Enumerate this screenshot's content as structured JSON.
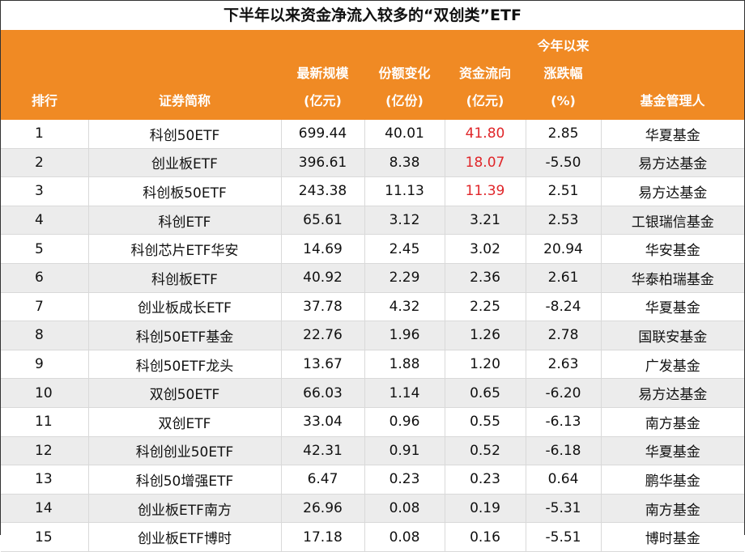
{
  "title": "下半年以来资金净流入较多的“双创类”ETF",
  "columns": [
    {
      "lines": [
        "排行"
      ]
    },
    {
      "lines": [
        "证券简称"
      ]
    },
    {
      "lines": [
        "最新规模",
        "(亿元)"
      ]
    },
    {
      "lines": [
        "份额变化",
        "(亿份)"
      ]
    },
    {
      "lines": [
        "资金流向",
        "(亿元)"
      ]
    },
    {
      "lines": [
        "今年以来",
        "涨跌幅",
        "(%)"
      ]
    },
    {
      "lines": [
        "基金管理人"
      ]
    }
  ],
  "highlight_color": "#e0262a",
  "header_color": "#f08a24",
  "rows": [
    {
      "rank": "1",
      "name": "科创50ETF",
      "scale": "699.44",
      "share_change": "40.01",
      "flow": "41.80",
      "ytd": "2.85",
      "manager": "华夏基金",
      "flow_highlight": true
    },
    {
      "rank": "2",
      "name": "创业板ETF",
      "scale": "396.61",
      "share_change": "8.38",
      "flow": "18.07",
      "ytd": "-5.50",
      "manager": "易方达基金",
      "flow_highlight": true
    },
    {
      "rank": "3",
      "name": "科创板50ETF",
      "scale": "243.38",
      "share_change": "11.13",
      "flow": "11.39",
      "ytd": "2.51",
      "manager": "易方达基金",
      "flow_highlight": true
    },
    {
      "rank": "4",
      "name": "科创ETF",
      "scale": "65.61",
      "share_change": "3.12",
      "flow": "3.21",
      "ytd": "2.53",
      "manager": "工银瑞信基金",
      "flow_highlight": false
    },
    {
      "rank": "5",
      "name": "科创芯片ETF华安",
      "scale": "14.69",
      "share_change": "2.45",
      "flow": "3.02",
      "ytd": "20.94",
      "manager": "华安基金",
      "flow_highlight": false
    },
    {
      "rank": "6",
      "name": "科创板ETF",
      "scale": "40.92",
      "share_change": "2.29",
      "flow": "2.36",
      "ytd": "2.61",
      "manager": "华泰柏瑞基金",
      "flow_highlight": false
    },
    {
      "rank": "7",
      "name": "创业板成长ETF",
      "scale": "37.78",
      "share_change": "4.32",
      "flow": "2.25",
      "ytd": "-8.24",
      "manager": "华夏基金",
      "flow_highlight": false
    },
    {
      "rank": "8",
      "name": "科创50ETF基金",
      "scale": "22.76",
      "share_change": "1.96",
      "flow": "1.26",
      "ytd": "2.78",
      "manager": "国联安基金",
      "flow_highlight": false
    },
    {
      "rank": "9",
      "name": "科创50ETF龙头",
      "scale": "13.67",
      "share_change": "1.88",
      "flow": "1.20",
      "ytd": "2.63",
      "manager": "广发基金",
      "flow_highlight": false
    },
    {
      "rank": "10",
      "name": "双创50ETF",
      "scale": "66.03",
      "share_change": "1.14",
      "flow": "0.65",
      "ytd": "-6.20",
      "manager": "易方达基金",
      "flow_highlight": false
    },
    {
      "rank": "11",
      "name": "双创ETF",
      "scale": "33.04",
      "share_change": "0.96",
      "flow": "0.55",
      "ytd": "-6.13",
      "manager": "南方基金",
      "flow_highlight": false
    },
    {
      "rank": "12",
      "name": "科创创业50ETF",
      "scale": "42.31",
      "share_change": "0.91",
      "flow": "0.52",
      "ytd": "-6.18",
      "manager": "华夏基金",
      "flow_highlight": false
    },
    {
      "rank": "13",
      "name": "科创50增强ETF",
      "scale": "6.47",
      "share_change": "0.23",
      "flow": "0.23",
      "ytd": "0.64",
      "manager": "鹏华基金",
      "flow_highlight": false
    },
    {
      "rank": "14",
      "name": "创业板ETF南方",
      "scale": "26.96",
      "share_change": "0.08",
      "flow": "0.19",
      "ytd": "-5.31",
      "manager": "南方基金",
      "flow_highlight": false
    },
    {
      "rank": "15",
      "name": "创业板ETF博时",
      "scale": "17.18",
      "share_change": "0.08",
      "flow": "0.16",
      "ytd": "-5.51",
      "manager": "博时基金",
      "flow_highlight": false
    }
  ]
}
